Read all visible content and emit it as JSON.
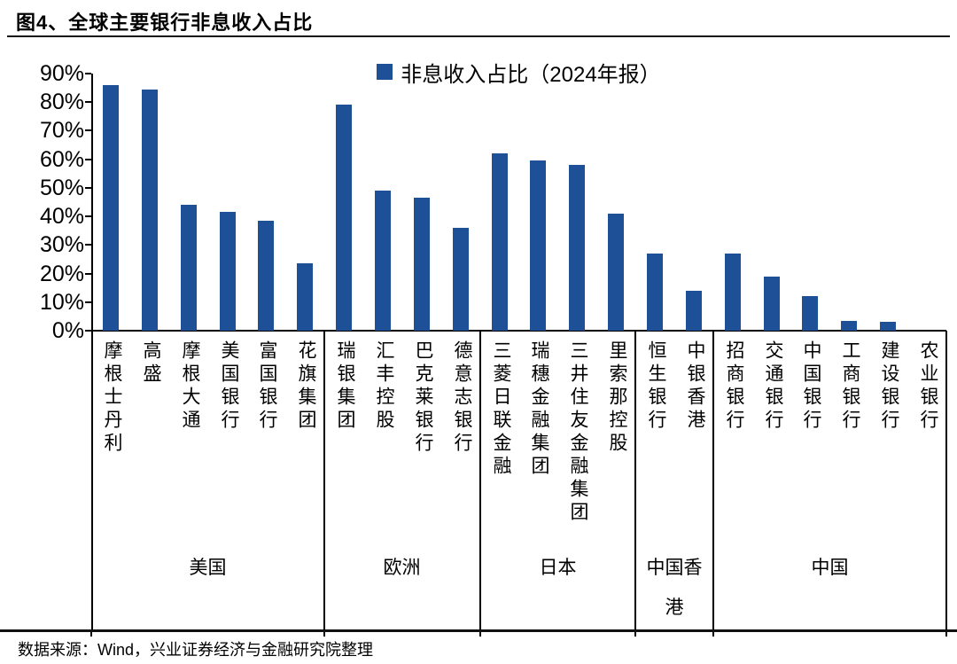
{
  "title": "图4、全球主要银行非息收入占比",
  "source": "数据来源：Wind，兴业证券经济与金融研究院整理",
  "colors": {
    "bar": "#1D5096",
    "axis": "#000000"
  },
  "chart_data": {
    "type": "bar",
    "title": "图4、全球主要银行非息收入占比",
    "legend": [
      "非息收入占比（2024年报）"
    ],
    "legend_position": "top-center",
    "xlabel": "",
    "ylabel": "",
    "ylim": [
      0,
      90
    ],
    "ytick_step": 10,
    "ytick_labels": [
      "0%",
      "10%",
      "20%",
      "30%",
      "40%",
      "50%",
      "60%",
      "70%",
      "80%",
      "90%"
    ],
    "grid": false,
    "groups": [
      {
        "region": "美国",
        "banks": [
          "摩根士丹利",
          "高盛",
          "摩根大通",
          "美国银行",
          "富国银行",
          "花旗集团"
        ],
        "values": [
          86,
          84.5,
          44,
          41.5,
          38.5,
          23.5
        ]
      },
      {
        "region": "欧洲",
        "banks": [
          "瑞银集团",
          "汇丰控股",
          "巴克莱银行",
          "德意志银行"
        ],
        "values": [
          79,
          49,
          46.5,
          36
        ]
      },
      {
        "region": "日本",
        "banks": [
          "三菱日联金融",
          "瑞穗金融集团",
          "三井住友金融集团",
          "里索那控股"
        ],
        "values": [
          62,
          59.5,
          58,
          41
        ]
      },
      {
        "region": "中国香港",
        "banks": [
          "恒生银行",
          "中银香港"
        ],
        "values": [
          27,
          14
        ]
      },
      {
        "region": "中国",
        "banks": [
          "招商银行",
          "交通银行",
          "中国银行",
          "工商银行",
          "建设银行",
          "农业银行"
        ],
        "values": [
          27,
          19,
          12,
          3.5,
          3,
          0
        ]
      }
    ]
  }
}
